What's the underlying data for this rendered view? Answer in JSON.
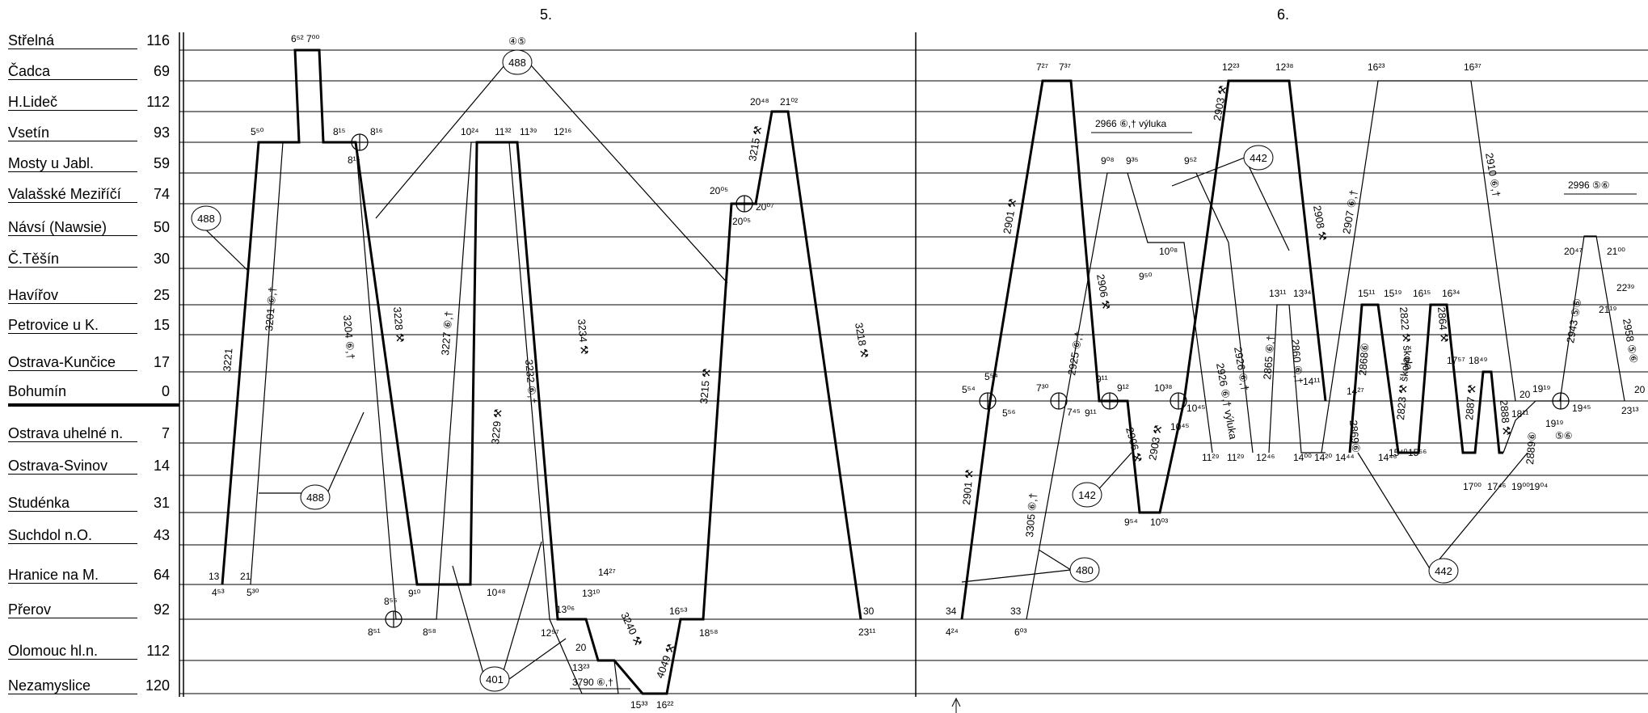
{
  "days": [
    "5.",
    "6."
  ],
  "stations": [
    {
      "name": "Střelná",
      "km": "116"
    },
    {
      "name": "Čadca",
      "km": "69"
    },
    {
      "name": "H.Lideč",
      "km": "112"
    },
    {
      "name": "Vsetín",
      "km": "93"
    },
    {
      "name": "Mosty u Jabl.",
      "km": "59"
    },
    {
      "name": "Valašské Meziříčí",
      "km": "74"
    },
    {
      "name": "Návsí (Nawsie)",
      "km": "50"
    },
    {
      "name": "Č.Těšín",
      "km": "30"
    },
    {
      "name": "Havířov",
      "km": "25"
    },
    {
      "name": "Petrovice u K.",
      "km": "15"
    },
    {
      "name": "Ostrava-Kunčice",
      "km": "17"
    },
    {
      "name": "Bohumín",
      "km": "0"
    },
    {
      "name": "Ostrava uhelné n.",
      "km": "7"
    },
    {
      "name": "Ostrava-Svinov",
      "km": "14"
    },
    {
      "name": "Studénka",
      "km": "31"
    },
    {
      "name": "Suchdol n.O.",
      "km": "43"
    },
    {
      "name": "Hranice na M.",
      "km": "64"
    },
    {
      "name": "Přerov",
      "km": "92"
    },
    {
      "name": "Olomouc hl.n.",
      "km": "112"
    },
    {
      "name": "Nezamyslice",
      "km": "120"
    }
  ],
  "circled_numbers": [
    "488",
    "488",
    "488",
    "401",
    "442",
    "142",
    "480",
    "442"
  ],
  "notes": [
    "④⑤",
    "2966 ⑥,† výluka",
    "2996 ⑤⑥",
    "3790 ⑥,†",
    "⑤⑥"
  ],
  "train_numbers": [
    "3221",
    "3201 ⑥,†",
    "3204 ⑥,†",
    "3228 ⚒",
    "3227 ⑥,†",
    "3229 ⚒",
    "3232 ⑥,†",
    "3234 ⚒",
    "3240 ⚒",
    "4049 ⚒",
    "3215 ⚒",
    "3215 ⚒",
    "3218 ⚒",
    "2901 ⚒",
    "2901 ⚒",
    "3305 ⑥,†",
    "2925 ⑥,†",
    "2906 ⚒",
    "2906 ⚒",
    "2903 ⚒",
    "2903 ⚒",
    "2926 ⑥,†",
    "2926 ⑥,† výluka",
    "2865 ⑥,†",
    "2860 ⑥,†",
    "2908 ⚒",
    "2907 ⑥,†",
    "2910 ⑥,†",
    "2868⑥",
    "2869⑥",
    "2822 ⚒ škola",
    "2823 ⚒ škola",
    "2864 ⚒",
    "2887 ⚒",
    "2888 ⚒",
    "2889⑥",
    "2943 ⑤⑥",
    "2958 ⑤⑥"
  ],
  "times": [
    "6⁵² 7⁰⁰",
    "5⁵⁰",
    "8¹⁵",
    "8¹⁶",
    "8¹⁵",
    "10²⁴",
    "11³²",
    "11³⁹",
    "12¹⁶",
    "20⁴⁸",
    "21⁰²",
    "20⁰⁵",
    "20⁰⁷",
    "20⁰⁵",
    "4⁵³",
    "5³⁰",
    "13",
    "21",
    "8⁵⁵",
    "9¹⁰",
    "10⁴⁸",
    "8⁵¹",
    "8⁵⁸",
    "13⁰⁶",
    "12⁵⁷",
    "20",
    "13²³",
    "13¹⁰",
    "14²⁷",
    "16⁵³",
    "18⁵⁸",
    "15³³",
    "16²²",
    "30",
    "23¹¹",
    "7²⁷",
    "7³⁷",
    "12²³",
    "12³⁸",
    "16²³",
    "16³⁷",
    "9⁰⁸",
    "9³⁵",
    "9⁵²",
    "10⁰⁸",
    "9⁵⁰",
    "5⁵⁴",
    "5⁵⁴",
    "5⁵⁶",
    "7³⁰",
    "7⁴⁵",
    "9¹¹",
    "9¹¹",
    "9¹²",
    "10³⁸",
    "10⁴⁵",
    "10⁴⁵",
    "9⁵⁴",
    "10⁰³",
    "11²⁹",
    "11²⁹",
    "12⁴⁶",
    "14⁰⁰",
    "14²⁰",
    "14⁴⁴",
    "14⁴⁶",
    "13¹¹",
    "13³⁴",
    "14¹¹",
    "14²⁷",
    "15¹¹",
    "15¹⁹",
    "16¹⁵",
    "16³⁴",
    "15⁴⁰",
    "15⁵⁶",
    "17⁵⁷",
    "18⁴⁹",
    "17⁰⁰",
    "17⁴⁶",
    "19⁰⁰",
    "19⁰⁴",
    "20",
    "19¹⁹",
    "19⁴⁵",
    "19¹⁹",
    "18¹¹",
    "20⁴⁷",
    "21⁰⁰",
    "21¹⁹",
    "22³⁹",
    "20",
    "23¹³",
    "34",
    "4²⁴",
    "33",
    "6⁰³"
  ],
  "colors": {
    "ink": "#000000",
    "paper": "#ffffff"
  }
}
